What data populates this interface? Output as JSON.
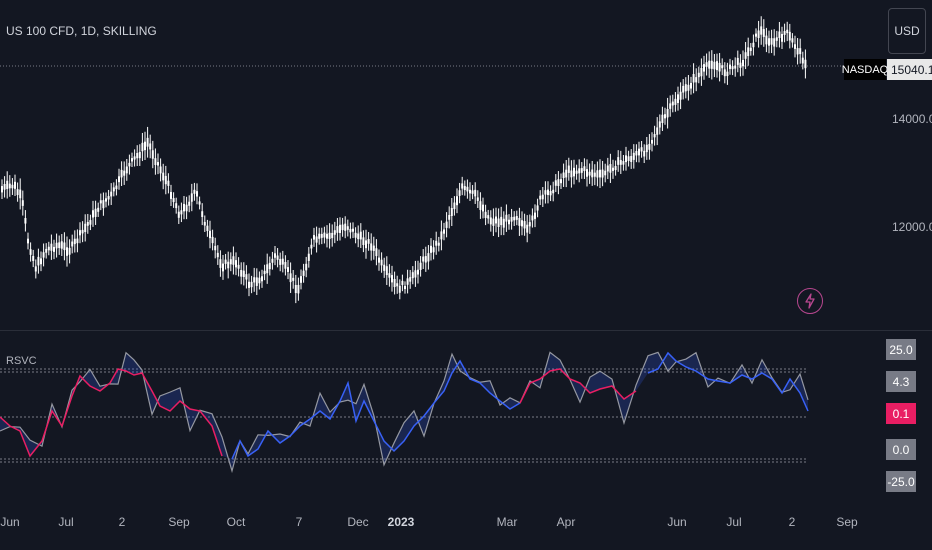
{
  "header": {
    "symbol_title": "US 100 CFD, 1D, SKILLING",
    "currency_label": "USD"
  },
  "price_scale": {
    "symbol_tag": "NASDAQ",
    "last_price": "15040.1",
    "labels": [
      "14000.0",
      "12000.0"
    ]
  },
  "indicator": {
    "name": "RSVC",
    "scale_labels": [
      "25.0",
      "4.3",
      "0.1",
      "0.0",
      "-25.0"
    ],
    "scale_colors": [
      "#787b86",
      "#787b86",
      "#e91e63",
      "#787b86",
      "#787b86"
    ]
  },
  "time_axis": {
    "labels": [
      "Jun",
      "Jul",
      "2",
      "Sep",
      "Oct",
      "7",
      "Dec",
      "2023",
      "Mar",
      "Apr",
      "Jun",
      "Jul",
      "2",
      "Sep"
    ]
  },
  "colors": {
    "background": "#131722",
    "candles": "#ffffff",
    "bull": "#3861f6",
    "bear": "#e91e63",
    "neutral": "#787b86"
  },
  "icons": {
    "alert": "lightning-icon"
  }
}
